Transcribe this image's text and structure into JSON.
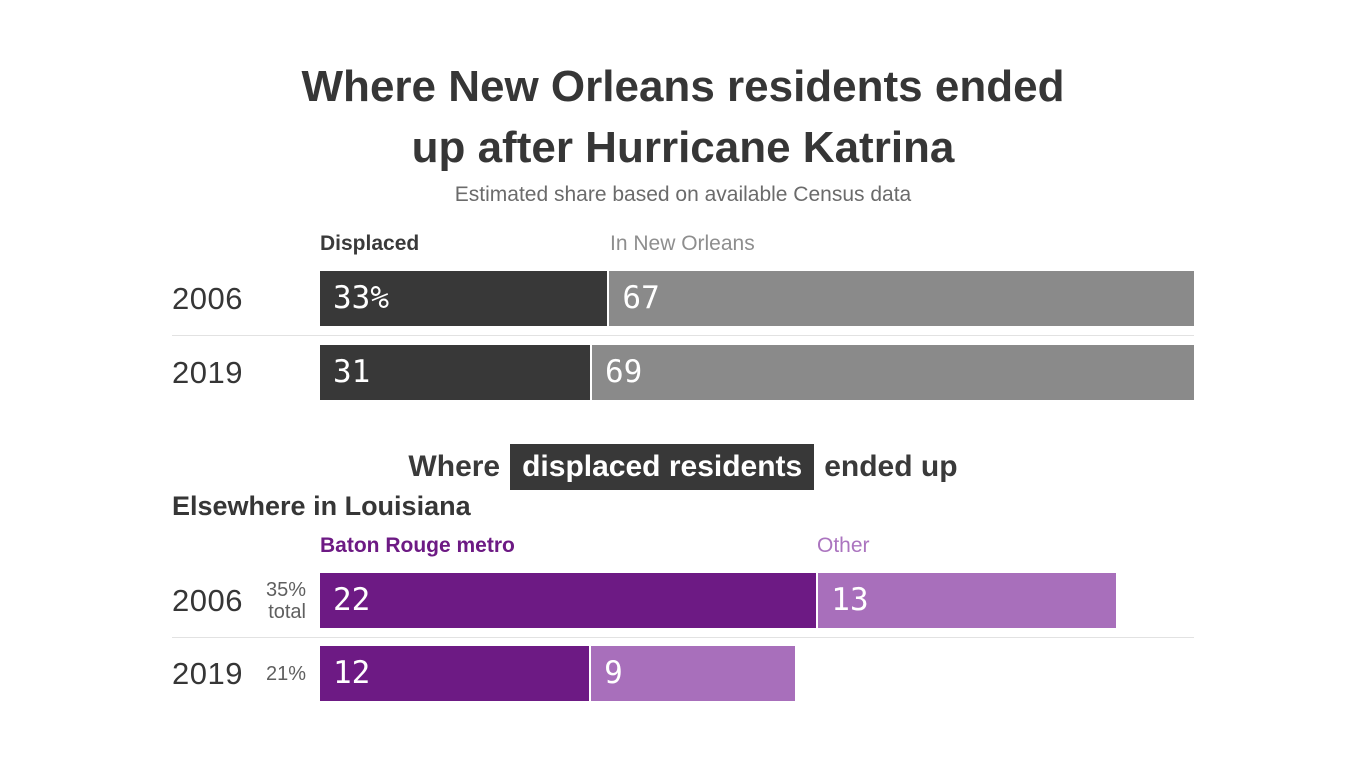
{
  "page": {
    "title_line1": "Where New Orleans residents ended",
    "title_line2": "up after Hurricane Katrina",
    "subtitle": "Estimated share based on available Census data"
  },
  "mid_heading": {
    "prefix": "Where",
    "highlight": "displaced residents",
    "suffix": "ended up"
  },
  "sub_heading": "Elsewhere in Louisiana",
  "colors": {
    "displaced_bar": "#383838",
    "in_new_orleans_bar": "#8a8a8a",
    "baton_rouge_bar": "#6d1a84",
    "other_bar": "#a86fbb",
    "text_dark": "#363636",
    "text_muted": "#6b6b6b",
    "separator": "#e2e2e2"
  },
  "top_chart": {
    "col1_label": "Displaced",
    "col2_label": "In New Orleans",
    "rows": [
      {
        "year": "2006",
        "v1": "33%",
        "v1_pct": 33,
        "v2": "67",
        "v2_pct": 67
      },
      {
        "year": "2019",
        "v1": "31",
        "v1_pct": 31,
        "v2": "69",
        "v2_pct": 69
      }
    ]
  },
  "bottom_chart": {
    "col1_label": "Baton Rouge metro",
    "col2_label": "Other",
    "rows": [
      {
        "year": "2006",
        "annotation_line1": "35%",
        "annotation_line2": "total",
        "v1": "22",
        "v1_pct": 56.9,
        "v2": "13",
        "v2_pct": 34.2
      },
      {
        "year": "2019",
        "annotation_line1": "21%",
        "v1": "12",
        "v1_pct": 30.9,
        "v2": "9",
        "v2_pct": 23.5
      }
    ]
  },
  "chart_data": [
    {
      "type": "bar",
      "variant": "horizontal-stacked",
      "title": "Where New Orleans residents ended up after Hurricane Katrina",
      "subtitle": "Estimated share based on available Census data",
      "categories": [
        "2006",
        "2019"
      ],
      "series": [
        {
          "name": "Displaced",
          "color": "#383838",
          "values": [
            33,
            31
          ]
        },
        {
          "name": "In New Orleans",
          "color": "#8a8a8a",
          "values": [
            67,
            69
          ]
        }
      ],
      "unit": "%",
      "xlim": [
        0,
        100
      ],
      "grid": false,
      "legend_position": "above-bars-inline",
      "value_labels": "inside-left"
    },
    {
      "type": "bar",
      "variant": "horizontal-stacked",
      "title": "Where displaced residents ended up — Elsewhere in Louisiana",
      "categories": [
        "2006",
        "2019"
      ],
      "category_totals": [
        "35% total",
        "21%"
      ],
      "series": [
        {
          "name": "Baton Rouge metro",
          "color": "#6d1a84",
          "values": [
            22,
            12
          ]
        },
        {
          "name": "Other",
          "color": "#a86fbb",
          "values": [
            13,
            9
          ]
        }
      ],
      "unit": "%",
      "xlim": [
        0,
        38.7
      ],
      "grid": false,
      "legend_position": "above-bars-inline",
      "value_labels": "inside-left"
    }
  ]
}
